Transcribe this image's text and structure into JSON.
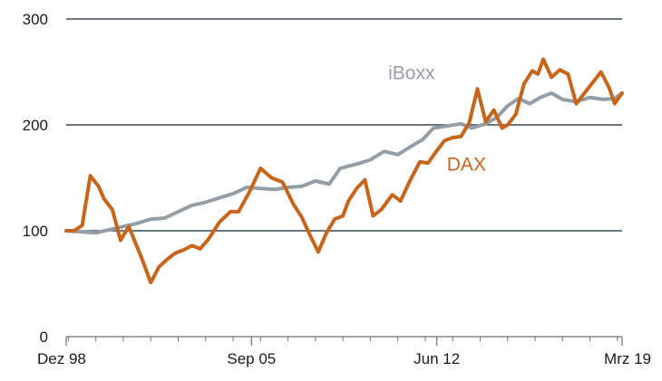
{
  "chart_data": {
    "type": "line",
    "title": "",
    "xlabel": "",
    "ylabel": "",
    "x_ticks": [
      "Dez 98",
      "Sep 05",
      "Jun 12",
      "Mrz 19"
    ],
    "x_range": [
      "Dez 98",
      "Mrz 19"
    ],
    "y_ticks": [
      0,
      100,
      200,
      300
    ],
    "ylim": [
      0,
      300
    ],
    "grid": "horizontal",
    "series": [
      {
        "name": "iBoxx",
        "color": "#939ea6",
        "x": [
          1998.92,
          1999.5,
          2000.0,
          2000.5,
          2001.0,
          2001.5,
          2002.0,
          2002.5,
          2003.0,
          2003.5,
          2004.0,
          2004.5,
          2005.0,
          2005.5,
          2006.0,
          2006.5,
          2007.0,
          2007.5,
          2008.0,
          2008.5,
          2008.9,
          2009.5,
          2010.0,
          2010.5,
          2011.0,
          2011.5,
          2011.9,
          2012.3,
          2012.8,
          2013.3,
          2013.7,
          2014.2,
          2014.6,
          2015.0,
          2015.4,
          2015.8,
          2016.2,
          2016.6,
          2017.0,
          2017.5,
          2018.0,
          2018.5,
          2018.9,
          2019.17
        ],
        "values": [
          100,
          99,
          98,
          101,
          104,
          107,
          111,
          112,
          118,
          124,
          127,
          131,
          135,
          141,
          140,
          139,
          141,
          142,
          147,
          144,
          159,
          163,
          167,
          175,
          172,
          180,
          186,
          197,
          199,
          201,
          197,
          201,
          207,
          218,
          225,
          220,
          226,
          230,
          224,
          222,
          226,
          224,
          225,
          230
        ]
      },
      {
        "name": "DAX",
        "color": "#c8651b",
        "x": [
          1998.92,
          1999.2,
          1999.5,
          1999.8,
          2000.1,
          2000.3,
          2000.6,
          2000.9,
          2001.2,
          2001.5,
          2001.7,
          2002.0,
          2002.3,
          2002.6,
          2002.9,
          2003.2,
          2003.5,
          2003.8,
          2004.1,
          2004.5,
          2004.9,
          2005.2,
          2005.6,
          2006.0,
          2006.4,
          2006.8,
          2007.2,
          2007.5,
          2007.8,
          2008.1,
          2008.4,
          2008.7,
          2009.0,
          2009.2,
          2009.5,
          2009.8,
          2010.1,
          2010.4,
          2010.8,
          2011.1,
          2011.4,
          2011.6,
          2011.8,
          2012.1,
          2012.4,
          2012.7,
          2013.0,
          2013.3,
          2013.6,
          2013.9,
          2014.2,
          2014.5,
          2014.8,
          2015.0,
          2015.3,
          2015.6,
          2015.9,
          2016.1,
          2016.3,
          2016.6,
          2016.9,
          2017.2,
          2017.5,
          2017.8,
          2018.1,
          2018.4,
          2018.7,
          2018.9,
          2019.17
        ],
        "values": [
          100,
          100,
          105,
          152,
          142,
          130,
          120,
          91,
          104,
          85,
          72,
          51,
          66,
          73,
          79,
          82,
          86,
          83,
          92,
          108,
          118,
          118,
          137,
          159,
          150,
          146,
          125,
          113,
          96,
          80,
          98,
          111,
          114,
          128,
          140,
          148,
          114,
          120,
          134,
          128,
          145,
          155,
          165,
          164,
          175,
          185,
          188,
          189,
          202,
          234,
          203,
          214,
          197,
          200,
          210,
          239,
          251,
          248,
          262,
          245,
          252,
          248,
          220,
          230,
          240,
          250,
          235,
          220,
          230
        ]
      }
    ]
  }
}
